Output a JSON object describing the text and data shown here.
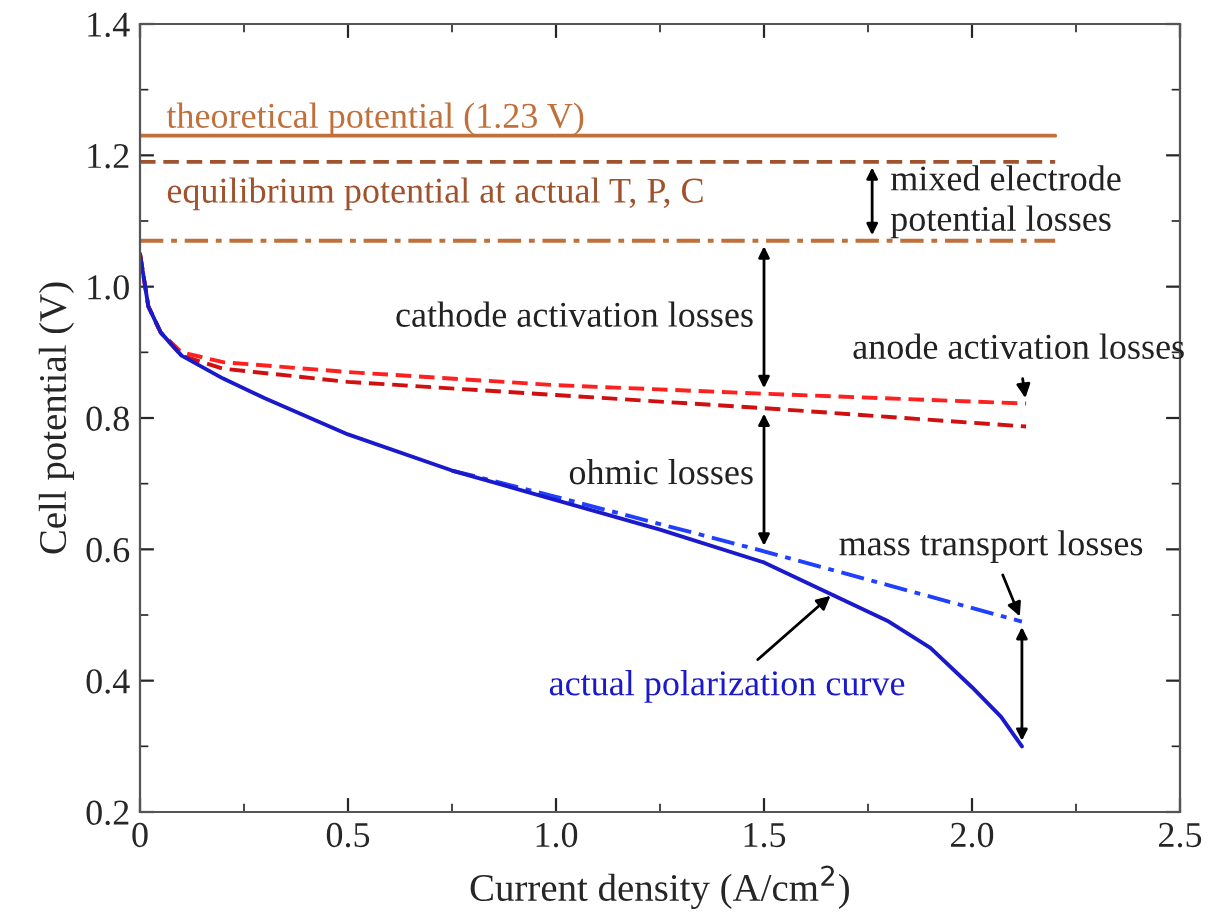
{
  "chart_data": {
    "type": "line",
    "xlabel": "Current density (A/cm$^{2}$)",
    "ylabel": "Cell potential (V)",
    "xlim": [
      0,
      2.5
    ],
    "xticks": [
      {
        "value": 0,
        "label": "0"
      },
      0.5,
      {
        "value": 1,
        "label": "1.0"
      },
      1.5,
      {
        "value": 2,
        "label": "2.0"
      },
      2.5
    ],
    "ylim": [
      0.2,
      1.4
    ],
    "yticks": [
      0.2,
      0.4,
      0.6,
      0.8,
      {
        "value": 1,
        "label": "1.0"
      },
      1.2,
      1.4
    ],
    "grid": false,
    "legend": false,
    "marker": "none",
    "series": [
      {
        "color": "#c0703a",
        "line_style": "solid",
        "x": [
          0,
          2.2
        ],
        "values": [
          1.23,
          1.23
        ]
      },
      {
        "color": "#a0522d",
        "line_style": "dashed",
        "x": [
          0,
          2.2
        ],
        "values": [
          1.19,
          1.19
        ]
      },
      {
        "color": "#c0703a",
        "line_style": "dashdot",
        "x": [
          0,
          2.2
        ],
        "values": [
          1.07,
          1.07
        ]
      },
      {
        "color": "#ff2020",
        "line_style": "dashed",
        "x": [
          0,
          0.02,
          0.05,
          0.1,
          0.2,
          0.5,
          1.0,
          1.5,
          2.13
        ],
        "values": [
          1.05,
          0.97,
          0.93,
          0.9,
          0.885,
          0.87,
          0.85,
          0.837,
          0.822
        ]
      },
      {
        "color": "#d01010",
        "line_style": "dashed",
        "x": [
          0,
          0.02,
          0.05,
          0.1,
          0.2,
          0.5,
          1.0,
          1.5,
          2.13
        ],
        "values": [
          1.05,
          0.97,
          0.93,
          0.895,
          0.875,
          0.855,
          0.835,
          0.815,
          0.787
        ]
      },
      {
        "color": "#2040ff",
        "line_style": "dashdot",
        "x": [
          0.75,
          1.0,
          1.5,
          2.12
        ],
        "values": [
          0.72,
          0.68,
          0.597,
          0.49
        ]
      },
      {
        "color": "#1a1acc",
        "line_style": "solid",
        "x": [
          0,
          0.02,
          0.05,
          0.1,
          0.2,
          0.3,
          0.5,
          0.75,
          1.0,
          1.25,
          1.5,
          1.65,
          1.8,
          1.9,
          2.0,
          2.07,
          2.12
        ],
        "values": [
          1.05,
          0.97,
          0.93,
          0.895,
          0.86,
          0.83,
          0.775,
          0.72,
          0.675,
          0.63,
          0.58,
          0.535,
          0.49,
          0.45,
          0.39,
          0.345,
          0.3
        ]
      }
    ],
    "annotations": [
      {
        "text": "theoretical potential (1.23 V)",
        "x": 0.05,
        "y": 1.23
      },
      {
        "text": "equilibrium potential at actual T, P, C",
        "x": 0.05,
        "y": 1.19
      },
      {
        "text": "mixed electrode\npotential losses",
        "x": 1.76,
        "y": 1.07
      },
      {
        "text": "cathode activation losses",
        "x": 1.5,
        "y": 1.07
      },
      {
        "text": "anode activation losses",
        "x": 2.13,
        "y": 0.822
      },
      {
        "text": "ohmic losses",
        "x": 1.5,
        "y": 0.815
      },
      {
        "text": "mass transport losses",
        "x": 2.12,
        "y": 0.49
      },
      {
        "text": "actual polarization curve",
        "x": 1.67,
        "y": 0.535
      }
    ]
  }
}
